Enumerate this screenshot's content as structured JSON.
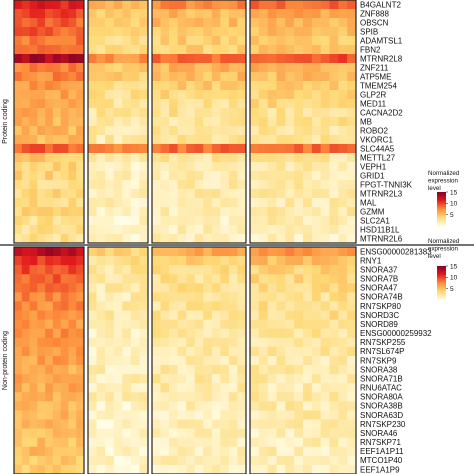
{
  "chart_data": {
    "type": "heatmap",
    "panels": [
      {
        "name": "Protein coding",
        "genes": [
          "B4GALNT2",
          "ZNF888",
          "OBSCN",
          "SPIB",
          "ADAMTSL1",
          "FBN2",
          "MTRNR2L8",
          "ZNF211",
          "ATP5ME",
          "TMEM254",
          "GLP2R",
          "MED11",
          "CACNA2D2",
          "MB",
          "ROBO2",
          "VKORC1",
          "SLC44A5",
          "METTL27",
          "VEPH1",
          "GRID1",
          "FPGT-TNNI3K",
          "MTRNR2L3",
          "MAL",
          "GZMM",
          "SLC2A1",
          "HSD11B1L",
          "MTRNR2L6"
        ],
        "group_means": [
          [
            11,
            5.5,
            7.5,
            8.5
          ],
          [
            10,
            4.5,
            5.5,
            6.5
          ],
          [
            9,
            4,
            5,
            5.5
          ],
          [
            9,
            3.5,
            4.5,
            5
          ],
          [
            8.5,
            3,
            4,
            4.5
          ],
          [
            8.5,
            3,
            4,
            4.5
          ],
          [
            13.5,
            7,
            8.5,
            9.5
          ],
          [
            8,
            4.5,
            5.5,
            5.5
          ],
          [
            7.5,
            4,
            5,
            5
          ],
          [
            7,
            3.5,
            4.5,
            4.5
          ],
          [
            6.5,
            3,
            3.5,
            4
          ],
          [
            6,
            2.5,
            3,
            3.5
          ],
          [
            6,
            2.5,
            3,
            3
          ],
          [
            5.5,
            2,
            2.5,
            3
          ],
          [
            5.5,
            2,
            2.5,
            2.5
          ],
          [
            5,
            2,
            2.5,
            2.5
          ],
          [
            9,
            8,
            8.5,
            8.5
          ],
          [
            4.5,
            2,
            2.5,
            2.5
          ],
          [
            4,
            1.5,
            2,
            2
          ],
          [
            4,
            1.5,
            2,
            2
          ],
          [
            3.5,
            1.5,
            2,
            2
          ],
          [
            3.5,
            1.5,
            2,
            2
          ],
          [
            3.5,
            1.5,
            2,
            2
          ],
          [
            3.5,
            1.5,
            1.5,
            2
          ],
          [
            3,
            1,
            1.5,
            2
          ],
          [
            3,
            1,
            1.5,
            1.5
          ],
          [
            3,
            1,
            1.5,
            1.5
          ]
        ]
      },
      {
        "name": "Non-protein coding",
        "genes": [
          "ENSG00000281383",
          "RNY1",
          "SNORA37",
          "SNORA7B",
          "SNORA47",
          "SNORA74B",
          "RN7SKP80",
          "SNORD3C",
          "SNORD89",
          "ENSG00000259932",
          "RN7SKP255",
          "RN7SL674P",
          "RN7SKP9",
          "SNORA38",
          "SNORA71B",
          "RNU6ATAC",
          "SNORA80A",
          "SNORA38B",
          "SNORA63D",
          "RN7SKP230",
          "SNORA46",
          "RN7SKP71",
          "EEF1A1P11",
          "MTCO1P40",
          "EEF1A1P9"
        ],
        "group_means": [
          [
            13,
            4,
            6,
            7
          ],
          [
            10.5,
            3,
            4,
            5
          ],
          [
            9.5,
            2.5,
            3.5,
            4
          ],
          [
            9,
            2.5,
            3,
            3.5
          ],
          [
            8.5,
            2,
            3,
            3.5
          ],
          [
            8,
            2,
            3,
            3
          ],
          [
            7.5,
            2,
            2.5,
            3
          ],
          [
            7.5,
            2,
            2.5,
            3
          ],
          [
            7,
            1.5,
            2.5,
            2.5
          ],
          [
            7,
            1.5,
            2.5,
            2.5
          ],
          [
            6.5,
            1.5,
            2,
            2.5
          ],
          [
            6.5,
            1.5,
            2,
            2.5
          ],
          [
            6.5,
            1.5,
            2,
            2
          ],
          [
            6,
            1.5,
            2,
            2
          ],
          [
            6,
            1.5,
            2,
            2
          ],
          [
            6,
            1.5,
            2,
            2
          ],
          [
            5.5,
            1.5,
            2,
            2
          ],
          [
            5.5,
            1,
            1.5,
            2
          ],
          [
            5.5,
            1,
            1.5,
            2
          ],
          [
            5,
            1,
            1.5,
            2
          ],
          [
            5,
            1,
            1.5,
            1.5
          ],
          [
            5,
            1,
            1.5,
            1.5
          ],
          [
            5,
            1,
            1.5,
            1.5
          ],
          [
            4.5,
            1,
            1.5,
            1.5
          ],
          [
            4.5,
            1,
            1.5,
            1.5
          ]
        ]
      }
    ],
    "sample_groups": 4,
    "samples_per_group": [
      9,
      7,
      11,
      12
    ],
    "legend": {
      "title": "Normalized expression level",
      "min": 0,
      "max": 15,
      "ticks": [
        5,
        10,
        15
      ],
      "colors": [
        "#fffde6",
        "#fed976",
        "#fd8d3c",
        "#e31a1c",
        "#800026"
      ]
    }
  }
}
